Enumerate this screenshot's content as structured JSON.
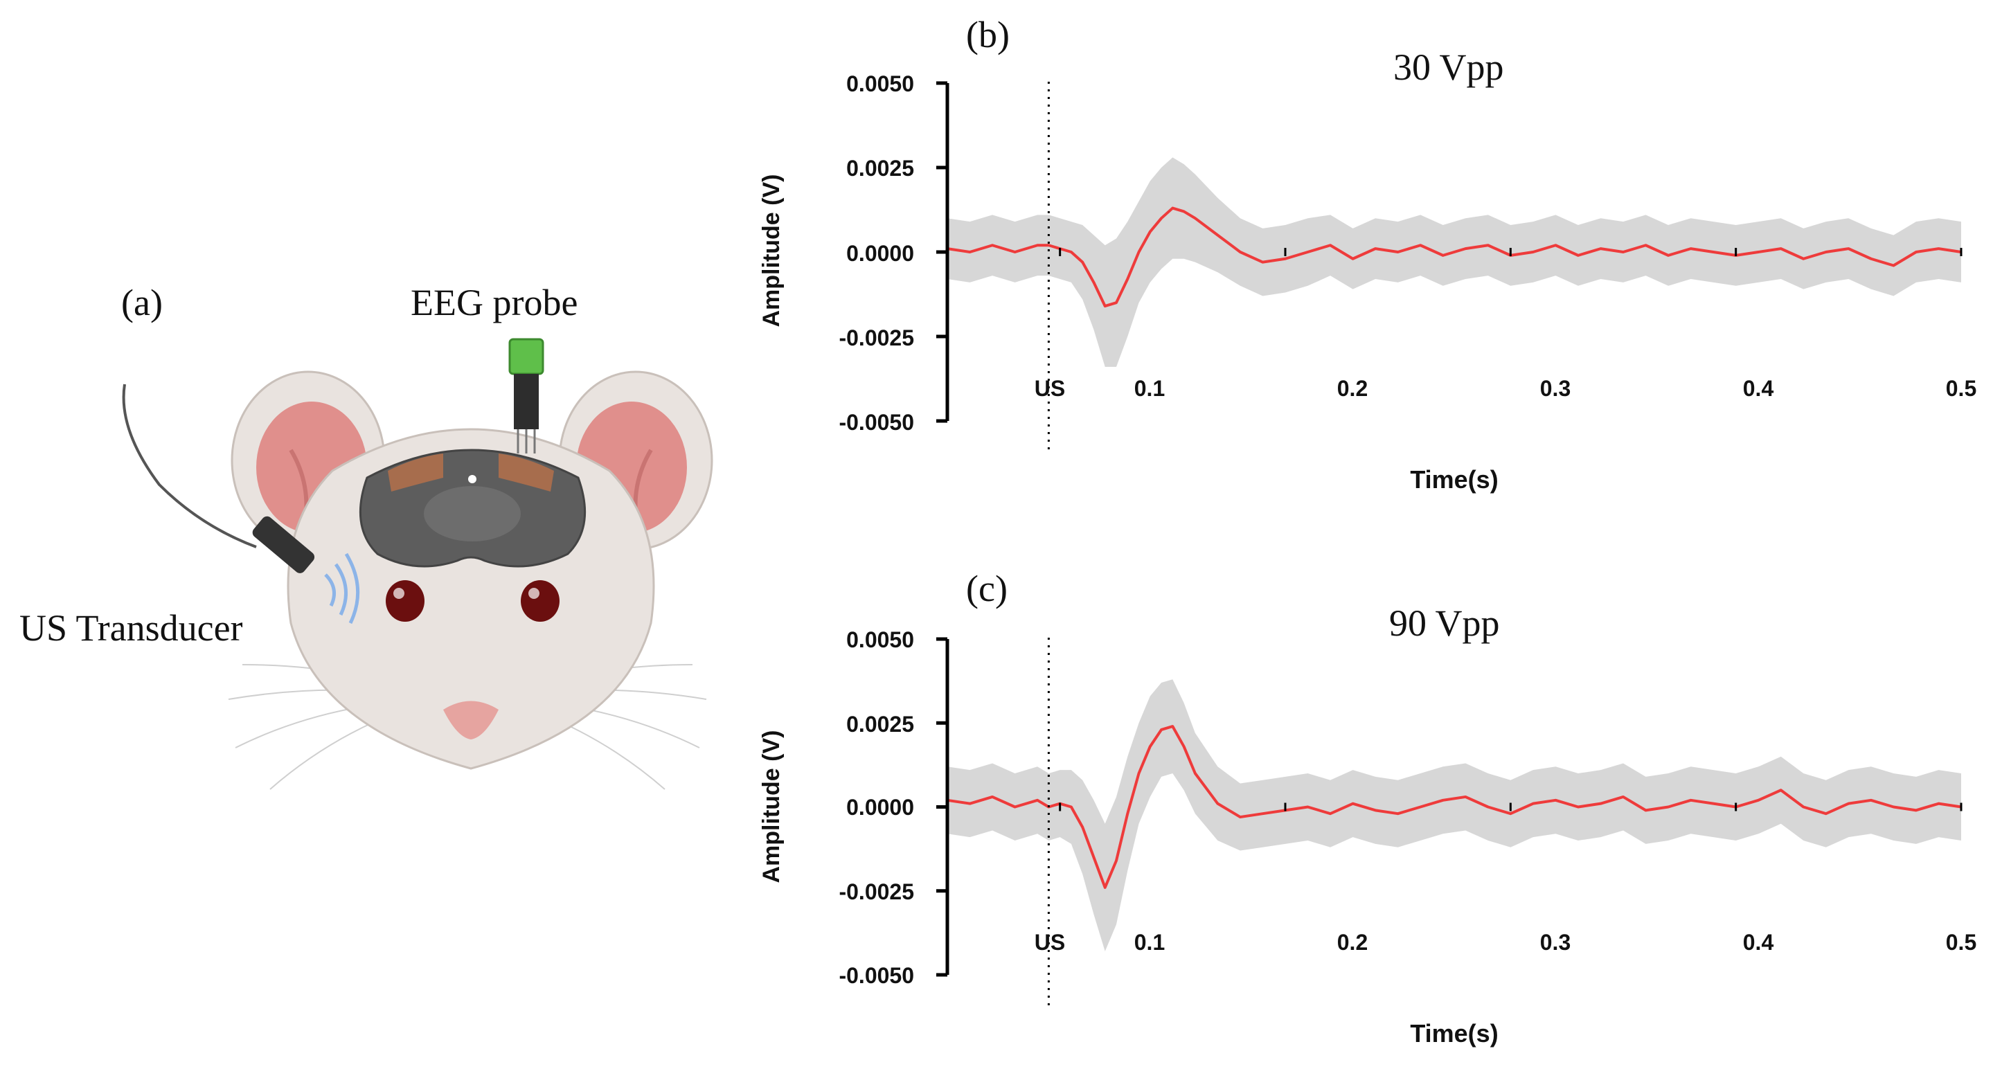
{
  "figure": {
    "panel_a": {
      "label": "(a)",
      "eeg_label": "EEG probe",
      "us_label": "US Transducer"
    }
  },
  "chart_data": [
    {
      "panel_label": "(b)",
      "type": "line",
      "title": "30 Vpp",
      "xlabel": "Time(s)",
      "ylabel": "Amplitude (V)",
      "xlim": [
        0.05,
        0.5
      ],
      "ylim": [
        -0.005,
        0.005
      ],
      "yticks": [
        0.005,
        0.0025,
        0.0,
        -0.0025,
        -0.005
      ],
      "ytick_labels": [
        "0.0050",
        "0.0025",
        "0.0000",
        "-0.0025",
        "-0.0050"
      ],
      "xticks": [
        0.1,
        0.2,
        0.3,
        0.4,
        0.5
      ],
      "xtick_labels": [
        "0.1",
        "0.2",
        "0.3",
        "0.4",
        "0.5"
      ],
      "marker": {
        "x": 0.095,
        "label": "US"
      },
      "series": [
        {
          "name": "mean",
          "color": "#ee3b3b",
          "x": [
            0.05,
            0.06,
            0.07,
            0.08,
            0.09,
            0.095,
            0.1,
            0.105,
            0.11,
            0.115,
            0.12,
            0.125,
            0.13,
            0.135,
            0.14,
            0.145,
            0.15,
            0.155,
            0.16,
            0.17,
            0.18,
            0.19,
            0.2,
            0.21,
            0.22,
            0.23,
            0.24,
            0.25,
            0.26,
            0.27,
            0.28,
            0.29,
            0.3,
            0.31,
            0.32,
            0.33,
            0.34,
            0.35,
            0.36,
            0.37,
            0.38,
            0.39,
            0.4,
            0.41,
            0.42,
            0.43,
            0.44,
            0.45,
            0.46,
            0.47,
            0.48,
            0.49,
            0.5
          ],
          "y": [
            0.0001,
            0.0,
            0.0002,
            0.0,
            0.0002,
            0.0002,
            0.0001,
            0.0,
            -0.0003,
            -0.0009,
            -0.0016,
            -0.0015,
            -0.0008,
            0.0,
            0.0006,
            0.001,
            0.0013,
            0.0012,
            0.001,
            0.0005,
            0.0,
            -0.0003,
            -0.0002,
            0.0,
            0.0002,
            -0.0002,
            0.0001,
            0.0,
            0.0002,
            -0.0001,
            0.0001,
            0.0002,
            -0.0001,
            0.0,
            0.0002,
            -0.0001,
            0.0001,
            0.0,
            0.0002,
            -0.0001,
            0.0001,
            0.0,
            -0.0001,
            0.0,
            0.0001,
            -0.0002,
            0.0,
            0.0001,
            -0.0002,
            -0.0004,
            0.0,
            0.0001,
            0.0
          ]
        },
        {
          "name": "spread",
          "color": "#d3d3d3",
          "x": [
            0.05,
            0.06,
            0.07,
            0.08,
            0.09,
            0.095,
            0.1,
            0.105,
            0.11,
            0.115,
            0.12,
            0.125,
            0.13,
            0.135,
            0.14,
            0.145,
            0.15,
            0.155,
            0.16,
            0.17,
            0.18,
            0.19,
            0.2,
            0.21,
            0.22,
            0.23,
            0.24,
            0.25,
            0.26,
            0.27,
            0.28,
            0.29,
            0.3,
            0.31,
            0.32,
            0.33,
            0.34,
            0.35,
            0.36,
            0.37,
            0.38,
            0.39,
            0.4,
            0.41,
            0.42,
            0.43,
            0.44,
            0.45,
            0.46,
            0.47,
            0.48,
            0.49,
            0.5
          ],
          "y": [
            0.0009,
            0.0009,
            0.0009,
            0.0009,
            0.0009,
            0.0009,
            0.0009,
            0.0009,
            0.0011,
            0.0014,
            0.0018,
            0.0019,
            0.0017,
            0.0015,
            0.0015,
            0.0015,
            0.0015,
            0.0014,
            0.0013,
            0.0011,
            0.001,
            0.001,
            0.001,
            0.001,
            0.0009,
            0.0009,
            0.0009,
            0.0009,
            0.0009,
            0.0009,
            0.0009,
            0.0009,
            0.0009,
            0.0009,
            0.0009,
            0.0009,
            0.0009,
            0.0009,
            0.0009,
            0.0009,
            0.0009,
            0.0009,
            0.0009,
            0.0009,
            0.0009,
            0.0009,
            0.0009,
            0.0009,
            0.0009,
            0.0009,
            0.0009,
            0.0009,
            0.0009
          ]
        }
      ]
    },
    {
      "panel_label": "(c)",
      "type": "line",
      "title": "90 Vpp",
      "xlabel": "Time(s)",
      "ylabel": "Amplitude (V)",
      "xlim": [
        0.05,
        0.5
      ],
      "ylim": [
        -0.005,
        0.005
      ],
      "yticks": [
        0.005,
        0.0025,
        0.0,
        -0.0025,
        -0.005
      ],
      "ytick_labels": [
        "0.0050",
        "0.0025",
        "0.0000",
        "-0.0025",
        "-0.0050"
      ],
      "xticks": [
        0.1,
        0.2,
        0.3,
        0.4,
        0.5
      ],
      "xtick_labels": [
        "0.1",
        "0.2",
        "0.3",
        "0.4",
        "0.5"
      ],
      "marker": {
        "x": 0.095,
        "label": "US"
      },
      "series": [
        {
          "name": "mean",
          "color": "#ee3b3b",
          "x": [
            0.05,
            0.06,
            0.07,
            0.08,
            0.09,
            0.095,
            0.1,
            0.105,
            0.11,
            0.115,
            0.12,
            0.125,
            0.13,
            0.135,
            0.14,
            0.145,
            0.15,
            0.155,
            0.16,
            0.17,
            0.18,
            0.19,
            0.2,
            0.21,
            0.22,
            0.23,
            0.24,
            0.25,
            0.26,
            0.27,
            0.28,
            0.29,
            0.3,
            0.31,
            0.32,
            0.33,
            0.34,
            0.35,
            0.36,
            0.37,
            0.38,
            0.39,
            0.4,
            0.41,
            0.42,
            0.43,
            0.44,
            0.45,
            0.46,
            0.47,
            0.48,
            0.49,
            0.5
          ],
          "y": [
            0.0002,
            0.0001,
            0.0003,
            0.0,
            0.0002,
            0.0,
            0.0001,
            0.0,
            -0.0006,
            -0.0015,
            -0.0024,
            -0.0016,
            -0.0002,
            0.001,
            0.0018,
            0.0023,
            0.0024,
            0.0018,
            0.001,
            0.0001,
            -0.0003,
            -0.0002,
            -0.0001,
            0.0,
            -0.0002,
            0.0001,
            -0.0001,
            -0.0002,
            0.0,
            0.0002,
            0.0003,
            0.0,
            -0.0002,
            0.0001,
            0.0002,
            0.0,
            0.0001,
            0.0003,
            -0.0001,
            0.0,
            0.0002,
            0.0001,
            0.0,
            0.0002,
            0.0005,
            0.0,
            -0.0002,
            0.0001,
            0.0002,
            0.0,
            -0.0001,
            0.0001,
            0.0
          ]
        },
        {
          "name": "spread",
          "color": "#d3d3d3",
          "x": [
            0.05,
            0.06,
            0.07,
            0.08,
            0.09,
            0.095,
            0.1,
            0.105,
            0.11,
            0.115,
            0.12,
            0.125,
            0.13,
            0.135,
            0.14,
            0.145,
            0.15,
            0.155,
            0.16,
            0.17,
            0.18,
            0.19,
            0.2,
            0.21,
            0.22,
            0.23,
            0.24,
            0.25,
            0.26,
            0.27,
            0.28,
            0.29,
            0.3,
            0.31,
            0.32,
            0.33,
            0.34,
            0.35,
            0.36,
            0.37,
            0.38,
            0.39,
            0.4,
            0.41,
            0.42,
            0.43,
            0.44,
            0.45,
            0.46,
            0.47,
            0.48,
            0.49,
            0.5
          ],
          "y": [
            0.001,
            0.001,
            0.001,
            0.001,
            0.001,
            0.001,
            0.001,
            0.0011,
            0.0014,
            0.0017,
            0.0019,
            0.0019,
            0.0017,
            0.0015,
            0.0015,
            0.0014,
            0.0014,
            0.0013,
            0.0012,
            0.0011,
            0.001,
            0.001,
            0.001,
            0.001,
            0.001,
            0.001,
            0.001,
            0.001,
            0.001,
            0.001,
            0.001,
            0.001,
            0.001,
            0.001,
            0.001,
            0.001,
            0.001,
            0.001,
            0.001,
            0.001,
            0.001,
            0.001,
            0.001,
            0.001,
            0.001,
            0.001,
            0.001,
            0.001,
            0.001,
            0.001,
            0.001,
            0.001,
            0.001
          ]
        }
      ]
    }
  ]
}
